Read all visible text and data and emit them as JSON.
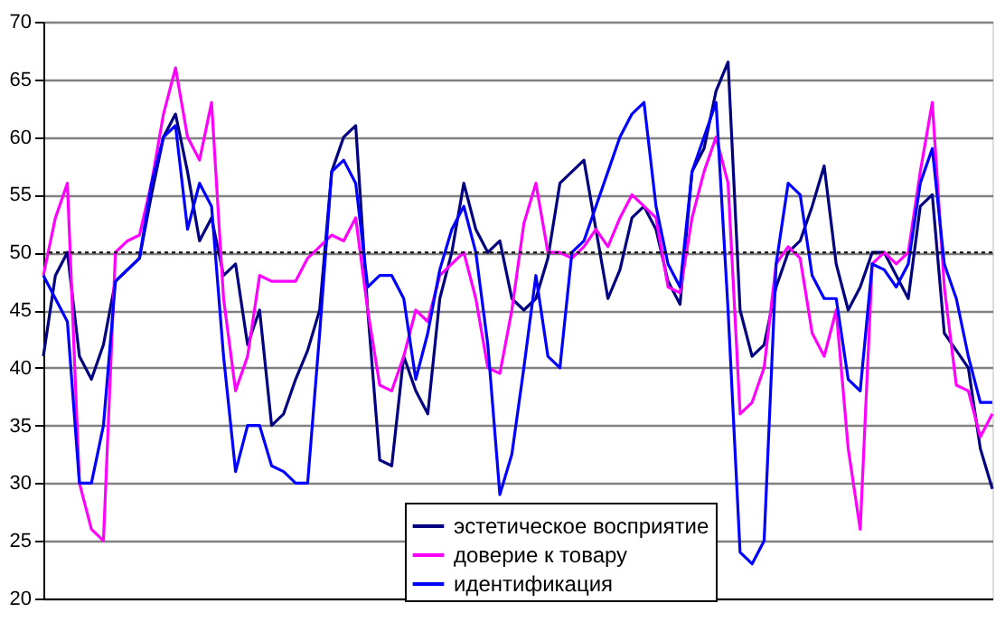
{
  "chart_data": {
    "type": "line",
    "categories": [
      null,
      null,
      null,
      null,
      null,
      null,
      null,
      null,
      null,
      null,
      null,
      null,
      null,
      null,
      null,
      null,
      null,
      null,
      null,
      null,
      null,
      null,
      null,
      null,
      null,
      null,
      null,
      null,
      null,
      null,
      null,
      null,
      null,
      null,
      null,
      null,
      null,
      null,
      null,
      null,
      null,
      null,
      null,
      null,
      null,
      null,
      null,
      null,
      null,
      null,
      null,
      null,
      null,
      null,
      null,
      null,
      null,
      null,
      null,
      null,
      null,
      null,
      null,
      null,
      null,
      null,
      null,
      null,
      null,
      null,
      null,
      null,
      null,
      null,
      null,
      null,
      null,
      null,
      null,
      null
    ],
    "series": [
      {
        "name": "эстетическое восприятие",
        "color": "#000080",
        "values": [
          41,
          48,
          50,
          41,
          39,
          42,
          47.5,
          48.5,
          49.5,
          55,
          60,
          62,
          57,
          51,
          53,
          48,
          49,
          42,
          45,
          35,
          36,
          39,
          41.5,
          45,
          57,
          60,
          61,
          45,
          32,
          31.5,
          41,
          38,
          36,
          46,
          50,
          56,
          52,
          50,
          51,
          46,
          45,
          46,
          49.5,
          56,
          57,
          58,
          52,
          46,
          48.5,
          53,
          54,
          52,
          47.5,
          45.5,
          57,
          59,
          64,
          66.5,
          45,
          41,
          42,
          47,
          50,
          51,
          54,
          57.5,
          49,
          45,
          47,
          50,
          50,
          48,
          46,
          54,
          55,
          43,
          41.5,
          40,
          33,
          29.5
        ]
      },
      {
        "name": "доверие к товару",
        "color": "#ff00ff",
        "values": [
          48,
          53,
          56,
          30,
          26,
          25,
          50,
          51,
          51.5,
          56,
          62,
          66,
          60,
          58,
          63,
          46,
          38,
          41,
          48,
          47.5,
          47.5,
          47.5,
          49.5,
          50.5,
          51.5,
          51,
          53,
          45,
          38.5,
          38,
          41,
          45,
          44,
          48,
          49,
          50,
          46,
          40,
          39.5,
          45,
          52.5,
          56,
          50,
          50,
          49.5,
          50.5,
          52,
          50.5,
          53,
          55,
          54,
          53,
          47,
          46.5,
          53,
          57,
          60,
          56,
          36,
          37,
          40,
          49,
          50.5,
          49.5,
          43,
          41,
          45,
          33,
          26,
          49,
          50,
          49,
          50,
          57,
          63,
          47,
          38.5,
          38,
          34,
          36
        ]
      },
      {
        "name": "идентификация",
        "color": "#0000ff",
        "values": [
          48,
          46,
          44,
          30,
          30,
          35,
          47.5,
          48.5,
          49.5,
          56,
          60,
          61,
          52,
          56,
          54,
          41,
          31,
          35,
          35,
          31.5,
          31,
          30,
          30,
          43,
          57,
          58,
          56,
          47,
          48,
          48,
          46,
          39,
          43,
          48.5,
          52,
          54,
          50,
          42,
          29,
          32.5,
          40,
          48,
          41,
          40,
          50,
          51,
          54,
          57,
          60,
          62,
          63,
          54,
          49,
          47,
          57,
          60,
          63,
          45,
          24,
          23,
          25,
          49,
          56,
          55,
          48,
          46,
          46,
          39,
          38,
          49,
          48.5,
          47,
          49,
          56,
          59,
          49,
          46,
          41,
          37,
          37
        ]
      }
    ],
    "ylim": [
      20,
      70
    ],
    "yticks": [
      20,
      25,
      30,
      35,
      40,
      45,
      50,
      55,
      60,
      65,
      70
    ],
    "grid": "y",
    "legend": "bottom",
    "tick_labels": "y",
    "marker": "none",
    "line_style": "solid",
    "ref_lines": [
      {
        "axis": "y",
        "value": 50,
        "line_style": "dotted",
        "color": "#000000"
      }
    ]
  }
}
